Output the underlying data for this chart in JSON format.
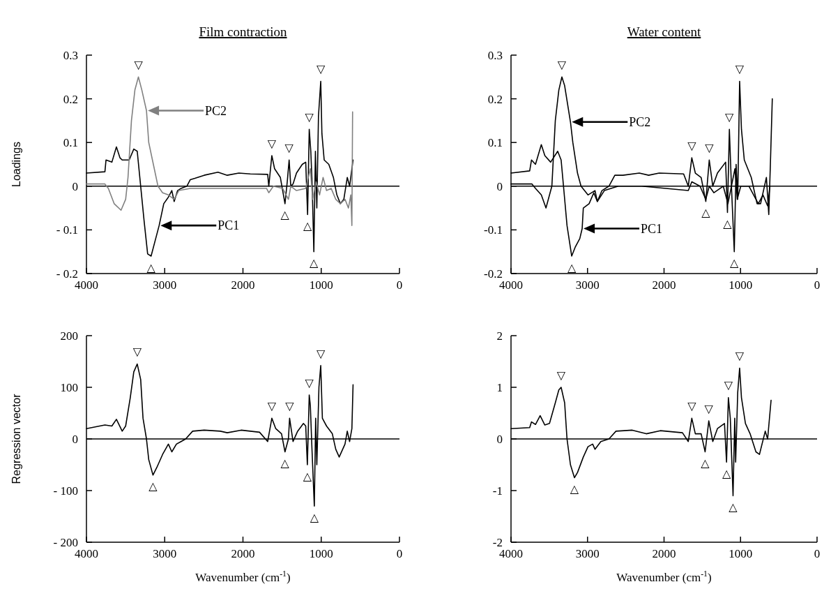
{
  "chart_data": [
    {
      "type": "line",
      "title": "Film contraction",
      "ylabel": "Loadings",
      "legend": "left",
      "xlim": [
        4000,
        0
      ],
      "xticks": [
        4000,
        3000,
        2000,
        1000,
        0
      ],
      "ylim": [
        -0.2,
        0.3
      ],
      "yticks": [
        {
          "value": -0.2,
          "label": "- 0.2"
        },
        {
          "value": -0.1,
          "label": "- 0.1"
        },
        0,
        0.1,
        0.2,
        0.3
      ],
      "ref_lines": [
        {
          "axis": "y",
          "value": 0,
          "color": "#000000"
        }
      ],
      "series": [
        {
          "name": "PC1",
          "color": "#000000",
          "x": [
            4000,
            3764,
            3750,
            3675,
            3617,
            3572,
            3543,
            3454,
            3395,
            3351,
            3307,
            3263,
            3218,
            3174,
            3115,
            3071,
            3012,
            2953,
            2909,
            2879,
            2835,
            2791,
            2717,
            2673,
            2614,
            2496,
            2319,
            2201,
            2053,
            1906,
            1684,
            1670,
            1631,
            1596,
            1522,
            1463,
            1434,
            1410,
            1389,
            1360,
            1316,
            1242,
            1198,
            1174,
            1153,
            1133,
            1115,
            1094,
            1074,
            1056,
            1035,
            1006,
            991,
            962,
            903,
            844,
            800,
            755,
            711,
            667,
            637,
            593
          ],
          "values": [
            0.03,
            0.033,
            0.06,
            0.055,
            0.09,
            0.065,
            0.06,
            0.06,
            0.085,
            0.08,
            0.0,
            -0.08,
            -0.155,
            -0.16,
            -0.12,
            -0.09,
            -0.04,
            -0.025,
            -0.01,
            -0.035,
            -0.01,
            -0.005,
            0.0,
            0.015,
            0.018,
            0.025,
            0.032,
            0.025,
            0.03,
            0.028,
            0.027,
            0.0,
            0.07,
            0.04,
            0.02,
            -0.04,
            0.01,
            0.06,
            0.0,
            0.005,
            0.03,
            0.05,
            0.055,
            -0.065,
            0.13,
            0.08,
            0.0,
            -0.15,
            0.08,
            -0.05,
            0.16,
            0.24,
            0.12,
            0.06,
            0.05,
            0.02,
            -0.02,
            -0.04,
            -0.03,
            0.02,
            0.0,
            0.06
          ]
        },
        {
          "name": "PC2",
          "color": "#808080",
          "x": [
            4000,
            3764,
            3720,
            3646,
            3558,
            3499,
            3469,
            3425,
            3381,
            3336,
            3292,
            3233,
            3204,
            3145,
            3086,
            3027,
            2953,
            2879,
            2820,
            2673,
            2496,
            2201,
            1699,
            1670,
            1611,
            1493,
            1419,
            1389,
            1316,
            1198,
            1139,
            1109,
            1065,
            1021,
            976,
            932,
            873,
            814,
            755,
            696,
            652,
            622,
            608,
            599
          ],
          "values": [
            0.005,
            0.005,
            -0.005,
            -0.04,
            -0.055,
            -0.03,
            0.02,
            0.15,
            0.22,
            0.25,
            0.22,
            0.173,
            0.1,
            0.05,
            0.0,
            -0.015,
            -0.02,
            -0.03,
            -0.01,
            -0.005,
            -0.005,
            -0.005,
            -0.005,
            -0.015,
            0.0,
            -0.005,
            -0.03,
            0.0,
            -0.01,
            -0.005,
            0.04,
            -0.03,
            0.01,
            -0.02,
            0.02,
            -0.01,
            -0.005,
            -0.03,
            -0.04,
            -0.03,
            -0.05,
            -0.02,
            -0.09,
            0.17
          ]
        }
      ],
      "annotations": [
        {
          "text": "▽",
          "x": 3336,
          "y": 0.25
        },
        {
          "text": "△",
          "x": 3174,
          "y": -0.16
        },
        {
          "text": "▽",
          "x": 1631,
          "y": 0.07
        },
        {
          "text": "▽",
          "x": 1410,
          "y": 0.06
        },
        {
          "text": "△",
          "x": 1463,
          "y": -0.04
        },
        {
          "text": "▽",
          "x": 1153,
          "y": 0.13
        },
        {
          "text": "△",
          "x": 1174,
          "y": -0.065
        },
        {
          "text": "▽",
          "x": 1006,
          "y": 0.24
        },
        {
          "text": "△",
          "x": 1094,
          "y": -0.15
        }
      ]
    },
    {
      "type": "line",
      "title": "Water content",
      "legend": "left",
      "xlim": [
        4000,
        0
      ],
      "xticks": [
        4000,
        3000,
        2000,
        1000,
        0
      ],
      "ylim": [
        -0.2,
        0.3
      ],
      "yticks": [
        -0.2,
        -0.1,
        0,
        0.1,
        0.2,
        0.3
      ],
      "ref_lines": [
        {
          "axis": "y",
          "value": 0,
          "color": "#000000"
        }
      ],
      "series": [
        {
          "name": "PC1",
          "color": "#000000",
          "x": [
            4000,
            3756,
            3732,
            3680,
            3604,
            3558,
            3482,
            3390,
            3345,
            3314,
            3268,
            3207,
            3162,
            3101,
            3070,
            3055,
            2979,
            2918,
            2872,
            2811,
            2720,
            2643,
            2537,
            2323,
            2201,
            2064,
            1744,
            1683,
            1637,
            1591,
            1515,
            1454,
            1409,
            1363,
            1302,
            1195,
            1171,
            1146,
            1119,
            1082,
            1058,
            1037,
            1012,
            988,
            951,
            860,
            784,
            738,
            662,
            631,
            610,
            585
          ],
          "values": [
            0.03,
            0.035,
            0.06,
            0.05,
            0.095,
            0.07,
            0.055,
            0.08,
            0.06,
            0.0,
            -0.09,
            -0.16,
            -0.14,
            -0.12,
            -0.097,
            -0.05,
            -0.04,
            -0.015,
            -0.035,
            -0.01,
            0.0,
            0.025,
            0.025,
            0.03,
            0.025,
            0.03,
            0.028,
            0.0,
            0.065,
            0.03,
            0.02,
            -0.035,
            0.06,
            0.0,
            0.03,
            0.055,
            -0.06,
            0.13,
            0.0,
            -0.15,
            0.05,
            -0.03,
            0.24,
            0.13,
            0.06,
            0.02,
            -0.04,
            -0.04,
            0.02,
            -0.065,
            0.05,
            0.2
          ]
        },
        {
          "name": "PC2",
          "color": "#000000",
          "x": [
            4000,
            3726,
            3680,
            3604,
            3543,
            3512,
            3466,
            3421,
            3375,
            3335,
            3299,
            3223,
            3192,
            3131,
            3085,
            2994,
            2902,
            2872,
            2780,
            2598,
            2293,
            1683,
            1637,
            1530,
            1454,
            1409,
            1348,
            1226,
            1165,
            1119,
            1073,
            1043,
            997,
            890,
            768,
            707,
            646,
            616
          ],
          "values": [
            0.005,
            0.005,
            -0.005,
            -0.02,
            -0.05,
            -0.03,
            0.0,
            0.15,
            0.22,
            0.25,
            0.23,
            0.147,
            0.1,
            0.03,
            0.0,
            -0.02,
            -0.01,
            -0.035,
            -0.01,
            0.0,
            0.0,
            -0.01,
            0.01,
            0.0,
            -0.03,
            0.0,
            -0.015,
            0.0,
            -0.04,
            0.0,
            0.04,
            -0.03,
            0.0,
            0.0,
            -0.04,
            -0.02,
            -0.045,
            0.0
          ]
        }
      ],
      "annotations": [
        {
          "text": "▽",
          "x": 3335,
          "y": 0.25
        },
        {
          "text": "△",
          "x": 3207,
          "y": -0.16
        },
        {
          "text": "▽",
          "x": 1637,
          "y": 0.065
        },
        {
          "text": "▽",
          "x": 1409,
          "y": 0.06
        },
        {
          "text": "△",
          "x": 1454,
          "y": -0.035
        },
        {
          "text": "▽",
          "x": 1146,
          "y": 0.13
        },
        {
          "text": "△",
          "x": 1171,
          "y": -0.06
        },
        {
          "text": "▽",
          "x": 1012,
          "y": 0.24
        },
        {
          "text": "△",
          "x": 1082,
          "y": -0.15
        }
      ]
    },
    {
      "type": "line",
      "xlabel": "Wavenumber (cm$^{-1}$)",
      "ylabel": "Regression vector",
      "xlim": [
        4000,
        0
      ],
      "xticks": [
        4000,
        3000,
        2000,
        1000,
        0
      ],
      "ylim": [
        -200,
        200
      ],
      "yticks": [
        {
          "value": -200,
          "label": "- 200"
        },
        {
          "value": -100,
          "label": "- 100"
        },
        0,
        100,
        200
      ],
      "ref_lines": [
        {
          "axis": "y",
          "value": 0,
          "color": "#000000"
        }
      ],
      "series": [
        {
          "color": "#000000",
          "x": [
            4000,
            3764,
            3675,
            3617,
            3543,
            3499,
            3440,
            3395,
            3351,
            3307,
            3277,
            3233,
            3204,
            3150,
            3100,
            3027,
            2953,
            2909,
            2850,
            2791,
            2732,
            2643,
            2496,
            2289,
            2201,
            2024,
            1788,
            1684,
            1631,
            1581,
            1507,
            1463,
            1419,
            1404,
            1360,
            1301,
            1227,
            1198,
            1177,
            1153,
            1139,
            1118,
            1088,
            1071,
            1056,
            1029,
            1006,
            985,
            932,
            858,
            814,
            770,
            696,
            667,
            637,
            608,
            593
          ],
          "values": [
            20,
            27,
            25,
            38,
            15,
            25,
            80,
            130,
            145,
            115,
            40,
            0,
            -40,
            -70,
            -55,
            -30,
            -10,
            -25,
            -10,
            -5,
            0,
            15,
            17,
            15,
            12,
            17,
            13,
            -5,
            40,
            20,
            10,
            -25,
            0,
            40,
            -5,
            15,
            30,
            25,
            -50,
            85,
            65,
            -20,
            -130,
            40,
            -50,
            100,
            142,
            40,
            25,
            10,
            -20,
            -35,
            -10,
            15,
            -5,
            20,
            105
          ]
        }
      ],
      "annotations": [
        {
          "text": "▽",
          "x": 3351,
          "y": 145
        },
        {
          "text": "△",
          "x": 3150,
          "y": -70
        },
        {
          "text": "▽",
          "x": 1631,
          "y": 40
        },
        {
          "text": "▽",
          "x": 1404,
          "y": 40
        },
        {
          "text": "△",
          "x": 1463,
          "y": -25
        },
        {
          "text": "▽",
          "x": 1153,
          "y": 85
        },
        {
          "text": "△",
          "x": 1177,
          "y": -50
        },
        {
          "text": "▽",
          "x": 1006,
          "y": 142
        },
        {
          "text": "△",
          "x": 1088,
          "y": -130
        }
      ]
    },
    {
      "type": "line",
      "xlabel": "Wavenumber (cm$^{-1}$)",
      "xlim": [
        4000,
        0
      ],
      "xticks": [
        4000,
        3000,
        2000,
        1000,
        0
      ],
      "ylim": [
        -2,
        2
      ],
      "yticks": [
        -2,
        -1,
        0,
        1,
        2
      ],
      "ref_lines": [
        {
          "axis": "y",
          "value": 0,
          "color": "#000000"
        }
      ],
      "series": [
        {
          "color": "#000000",
          "x": [
            4000,
            3756,
            3732,
            3680,
            3619,
            3558,
            3497,
            3421,
            3375,
            3345,
            3299,
            3268,
            3223,
            3171,
            3131,
            3055,
            2994,
            2933,
            2902,
            2826,
            2720,
            2628,
            2415,
            2232,
            2049,
            1759,
            1683,
            1637,
            1591,
            1515,
            1463,
            1415,
            1363,
            1302,
            1210,
            1183,
            1159,
            1134,
            1098,
            1076,
            1064,
            1037,
            1012,
            988,
            936,
            875,
            799,
            753,
            677,
            646,
            616,
            601
          ],
          "values": [
            0.2,
            0.22,
            0.33,
            0.28,
            0.45,
            0.27,
            0.3,
            0.7,
            0.95,
            1.0,
            0.7,
            0.0,
            -0.5,
            -0.75,
            -0.65,
            -0.35,
            -0.15,
            -0.1,
            -0.2,
            -0.05,
            0.0,
            0.15,
            0.17,
            0.1,
            0.16,
            0.12,
            -0.05,
            0.4,
            0.1,
            0.1,
            -0.25,
            0.35,
            -0.05,
            0.2,
            0.3,
            -0.45,
            0.8,
            0.4,
            -1.1,
            0.4,
            -0.45,
            0.9,
            1.37,
            0.8,
            0.3,
            0.1,
            -0.25,
            -0.3,
            0.15,
            0.0,
            0.5,
            0.75
          ]
        }
      ],
      "annotations": [
        {
          "text": "▽",
          "x": 3345,
          "y": 1.0
        },
        {
          "text": "△",
          "x": 3171,
          "y": -0.75
        },
        {
          "text": "▽",
          "x": 1637,
          "y": 0.4
        },
        {
          "text": "▽",
          "x": 1415,
          "y": 0.35
        },
        {
          "text": "△",
          "x": 1463,
          "y": -0.25
        },
        {
          "text": "▽",
          "x": 1159,
          "y": 0.8
        },
        {
          "text": "△",
          "x": 1183,
          "y": -0.45
        },
        {
          "text": "▽",
          "x": 1012,
          "y": 1.37
        },
        {
          "text": "△",
          "x": 1098,
          "y": -1.1
        }
      ]
    }
  ]
}
